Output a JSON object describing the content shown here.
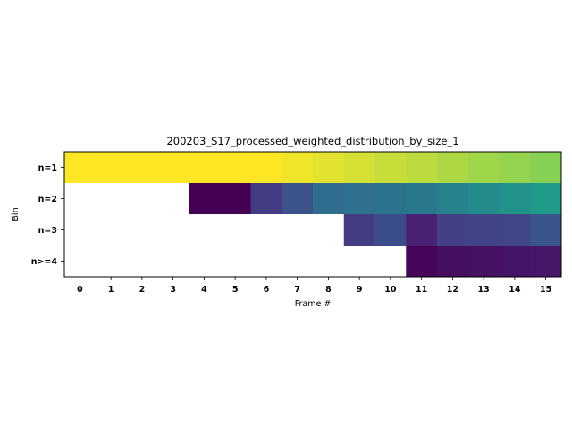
{
  "chart_data": {
    "type": "heatmap",
    "title": "200203_S17_processed_weighted_distribution_by_size_1",
    "xlabel": "Frame #",
    "ylabel": "Bin",
    "x_categories": [
      "0",
      "1",
      "2",
      "3",
      "4",
      "5",
      "6",
      "7",
      "8",
      "9",
      "10",
      "11",
      "12",
      "13",
      "14",
      "15"
    ],
    "y_categories": [
      "n=1",
      "n=2",
      "n=3",
      "n>=4"
    ],
    "colormap": "viridis",
    "value_range": [
      0,
      1
    ],
    "missing_color": "#ffffff",
    "grid": false,
    "values": [
      [
        1.0,
        1.0,
        1.0,
        1.0,
        1.0,
        1.0,
        1.0,
        0.99,
        0.98,
        0.97,
        0.96,
        0.95,
        0.94,
        0.93,
        0.92,
        0.91
      ],
      [
        null,
        null,
        null,
        null,
        0.0,
        0.0,
        0.22,
        0.32,
        0.44,
        0.46,
        0.48,
        0.5,
        0.55,
        0.6,
        0.64,
        0.68
      ],
      [
        null,
        null,
        null,
        null,
        null,
        null,
        null,
        null,
        null,
        0.22,
        0.3,
        0.12,
        0.24,
        0.25,
        0.26,
        0.33
      ],
      [
        null,
        null,
        null,
        null,
        null,
        null,
        null,
        null,
        null,
        null,
        null,
        0.02,
        0.05,
        0.06,
        0.07,
        0.08
      ]
    ]
  }
}
